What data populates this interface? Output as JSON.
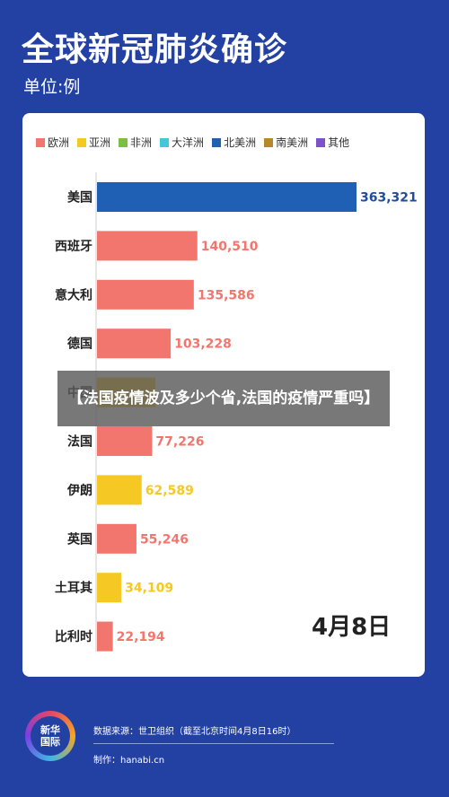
{
  "header": {
    "title": "全球新冠肺炎确诊",
    "unit": "单位:例"
  },
  "colors": {
    "欧洲": "#f2766d",
    "亚洲": "#f6c823",
    "非洲": "#7bc043",
    "大洋洲": "#44c7d9",
    "北美洲": "#1f5fb4",
    "南美洲": "#b8862b",
    "其他": "#7b52c9"
  },
  "chart_data": {
    "type": "bar",
    "orientation": "horizontal",
    "legend": [
      "欧洲",
      "亚洲",
      "非洲",
      "大洋洲",
      "北美洲",
      "南美洲",
      "其他"
    ],
    "legend_position": "top-left",
    "categories": [
      "美国",
      "西班牙",
      "意大利",
      "德国",
      "中国",
      "法国",
      "伊朗",
      "英国",
      "土耳其",
      "比利时"
    ],
    "values": [
      363321,
      140510,
      135586,
      103228,
      81802,
      77226,
      62589,
      55246,
      34109,
      22194
    ],
    "value_labels": [
      "363,321",
      "140,510",
      "135,586",
      "103,228",
      "",
      "77,226",
      "62,589",
      "55,246",
      "34,109",
      "22,194"
    ],
    "regions": [
      "北美洲",
      "欧洲",
      "欧洲",
      "欧洲",
      "亚洲",
      "欧洲",
      "亚洲",
      "欧洲",
      "亚洲",
      "欧洲"
    ],
    "xlim": [
      0,
      363321
    ],
    "grid": false
  },
  "date": "4月8日",
  "overlay": {
    "text": "【法国疫情波及多少个省,法国的疫情严重吗】"
  },
  "footer": {
    "logo_text": "新华\n国际",
    "source": "数据来源：世卫组织（截至北京时间4月8日16时）",
    "maker": "制作：hanabi.cn"
  }
}
